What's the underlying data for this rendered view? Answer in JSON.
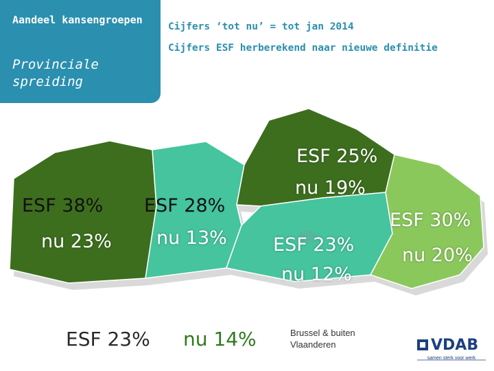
{
  "header": {
    "title": "Aandeel kansengroepen",
    "subtitle": "Provinciale spreiding",
    "note_1": "Cijfers ‘tot nu’ = tot jan 2014",
    "note_2": "Cijfers ESF herberekend naar nieuwe definitie"
  },
  "provinces": [
    {
      "id": "west-vlaanderen",
      "esf_label": "ESF 38%",
      "now_label": "nu 23%",
      "esf": 38,
      "now": 23,
      "color": "#3d6e1e"
    },
    {
      "id": "oost-vlaanderen",
      "esf_label": "ESF 28%",
      "now_label": "nu 13%",
      "esf": 28,
      "now": 13,
      "color": "#45c49d"
    },
    {
      "id": "antwerpen",
      "esf_label": "ESF 25%",
      "now_label": "nu 19%",
      "esf": 25,
      "now": 19,
      "color": "#3d6e1e"
    },
    {
      "id": "vlaams-brabant",
      "esf_label": "ESF 23%",
      "now_label": "nu 12%",
      "esf": 23,
      "now": 12,
      "color": "#45c49d"
    },
    {
      "id": "limburg",
      "esf_label": "ESF 30%",
      "now_label": "nu 20%",
      "esf": 30,
      "now": 20,
      "color": "#8bc85c"
    }
  ],
  "brussels": {
    "esf_label": "ESF 23%",
    "now_label": "nu 14%",
    "legend": "Brussel & buiten Vlaanderen"
  },
  "logo": {
    "name": "VDAB",
    "tagline": "samen sterk voor werk"
  },
  "colors": {
    "panel": "#2b8faf",
    "dark_green": "#3d6e1e",
    "mint": "#45c49d",
    "light_green": "#8bc85c",
    "logo_blue": "#1c3f7f"
  }
}
